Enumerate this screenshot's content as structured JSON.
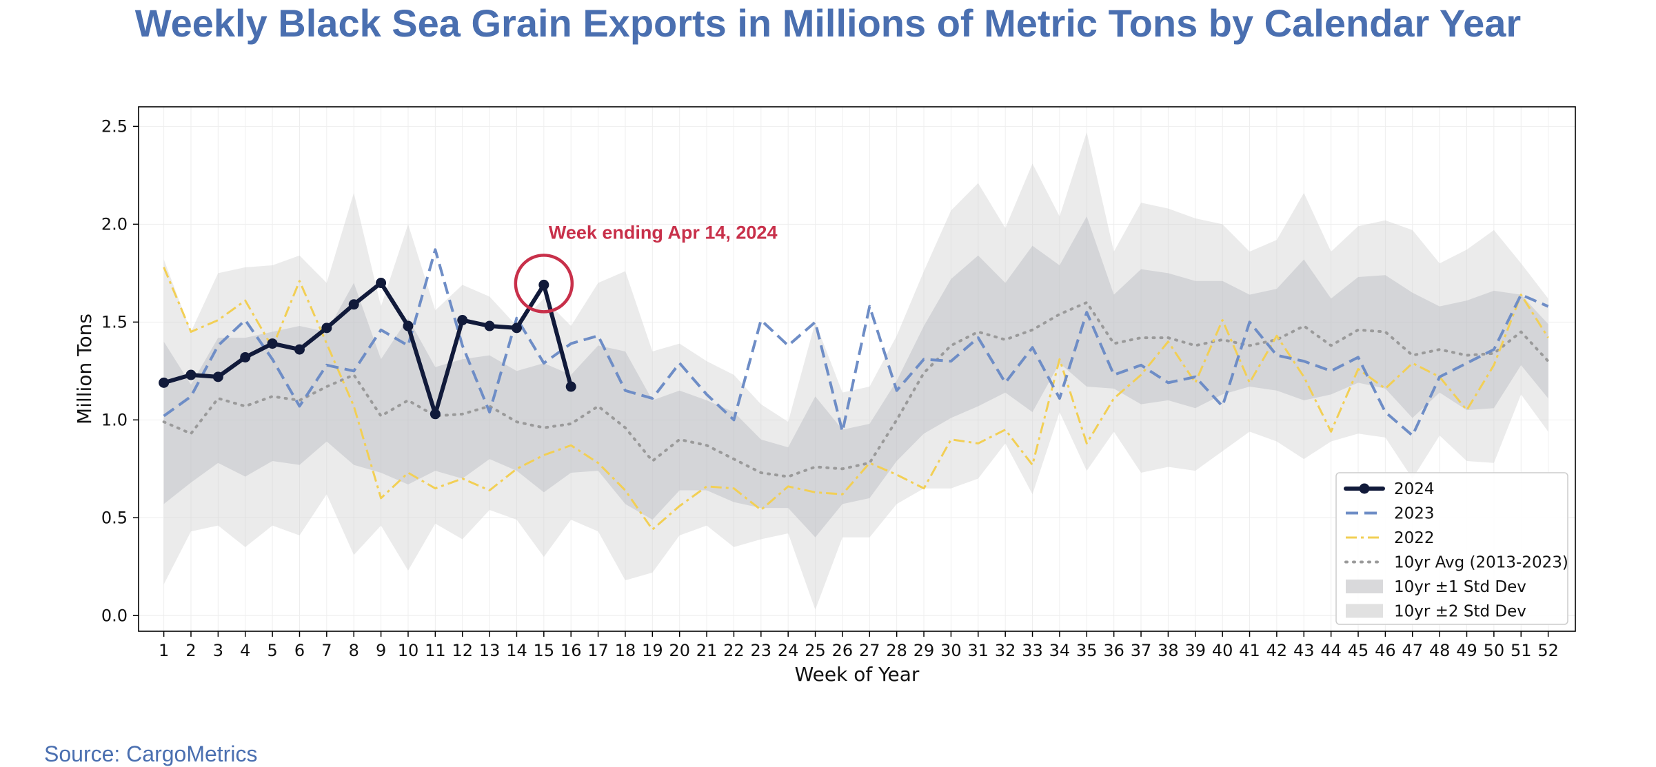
{
  "title": "Weekly Black Sea Grain Exports in Millions of Metric Tons by Calendar Year",
  "source": "Source: CargoMetrics",
  "colors": {
    "title": "#4A6FB0",
    "s2024": "#111A3A",
    "s2023": "#6E8DC6",
    "s2022": "#F2CF55",
    "avg": "#9A9A9A",
    "band1": "#D5D6DA",
    "band2": "#E8E8E8",
    "annotation": "#C8304A"
  },
  "chart_data": {
    "type": "line",
    "title": "Weekly Black Sea Grain Exports in Millions of Metric Tons by Calendar Year",
    "xlabel": "Week of Year",
    "ylabel": "Million Tons",
    "xlim": [
      0.07,
      53
    ],
    "ylim": [
      -0.08,
      2.6
    ],
    "yticks": [
      0.0,
      0.5,
      1.0,
      1.5,
      2.0,
      2.5
    ],
    "ytick_labels": [
      "0.0",
      "0.5",
      "1.0",
      "1.5",
      "2.0",
      "2.5"
    ],
    "x": [
      1,
      2,
      3,
      4,
      5,
      6,
      7,
      8,
      9,
      10,
      11,
      12,
      13,
      14,
      15,
      16,
      17,
      18,
      19,
      20,
      21,
      22,
      23,
      24,
      25,
      26,
      27,
      28,
      29,
      30,
      31,
      32,
      33,
      34,
      35,
      36,
      37,
      38,
      39,
      40,
      41,
      42,
      43,
      44,
      45,
      46,
      47,
      48,
      49,
      50,
      51,
      52
    ],
    "grid": true,
    "legend_position": "lower right",
    "series": [
      {
        "name": "2024",
        "style": "solid-marker",
        "x": [
          1,
          2,
          3,
          4,
          5,
          6,
          7,
          8,
          9,
          10,
          11,
          12,
          13,
          14,
          15,
          16
        ],
        "values": [
          1.19,
          1.23,
          1.22,
          1.32,
          1.39,
          1.36,
          1.47,
          1.59,
          1.7,
          1.48,
          1.03,
          1.51,
          1.48,
          1.47,
          1.69,
          1.17
        ]
      },
      {
        "name": "2023",
        "style": "dashed",
        "values": [
          1.02,
          1.12,
          1.38,
          1.51,
          1.31,
          1.07,
          1.28,
          1.25,
          1.46,
          1.38,
          1.87,
          1.38,
          1.04,
          1.52,
          1.29,
          1.39,
          1.43,
          1.15,
          1.11,
          1.29,
          1.13,
          1.0,
          1.51,
          1.38,
          1.5,
          0.94,
          1.58,
          1.15,
          1.31,
          1.3,
          1.42,
          1.19,
          1.37,
          1.11,
          1.55,
          1.23,
          1.28,
          1.19,
          1.22,
          1.07,
          1.5,
          1.33,
          1.3,
          1.25,
          1.32,
          1.04,
          0.92,
          1.22,
          1.29,
          1.36,
          1.64,
          1.58
        ]
      },
      {
        "name": "2022",
        "style": "dashdot",
        "values": [
          1.78,
          1.45,
          1.51,
          1.61,
          1.37,
          1.71,
          1.39,
          1.07,
          0.6,
          0.73,
          0.65,
          0.7,
          0.64,
          0.75,
          0.82,
          0.87,
          0.78,
          0.64,
          0.44,
          0.56,
          0.66,
          0.65,
          0.54,
          0.66,
          0.63,
          0.62,
          0.78,
          0.72,
          0.65,
          0.9,
          0.88,
          0.95,
          0.77,
          1.31,
          0.88,
          1.11,
          1.23,
          1.4,
          1.19,
          1.51,
          1.19,
          1.43,
          1.22,
          0.94,
          1.26,
          1.16,
          1.29,
          1.22,
          1.05,
          1.28,
          1.64,
          1.42
        ]
      },
      {
        "name": "10yr Avg (2013-2023)",
        "style": "dotted",
        "values": [
          0.99,
          0.93,
          1.11,
          1.07,
          1.12,
          1.1,
          1.17,
          1.23,
          1.02,
          1.1,
          1.02,
          1.03,
          1.07,
          0.99,
          0.96,
          0.98,
          1.07,
          0.96,
          0.79,
          0.9,
          0.87,
          0.8,
          0.73,
          0.71,
          0.76,
          0.75,
          0.78,
          1.0,
          1.24,
          1.38,
          1.45,
          1.41,
          1.46,
          1.54,
          1.6,
          1.39,
          1.42,
          1.42,
          1.38,
          1.41,
          1.38,
          1.41,
          1.48,
          1.38,
          1.46,
          1.45,
          1.33,
          1.36,
          1.33,
          1.34,
          1.45,
          1.3
        ]
      }
    ],
    "bands": [
      {
        "name": "10yr ±1 Std Dev",
        "upper": [
          1.4,
          1.18,
          1.42,
          1.42,
          1.45,
          1.48,
          1.45,
          1.7,
          1.31,
          1.52,
          1.27,
          1.31,
          1.33,
          1.25,
          1.29,
          1.23,
          1.38,
          1.35,
          1.1,
          1.15,
          1.1,
          1.04,
          0.9,
          0.86,
          1.12,
          0.95,
          0.98,
          1.2,
          1.48,
          1.72,
          1.84,
          1.7,
          1.89,
          1.79,
          2.04,
          1.64,
          1.77,
          1.75,
          1.71,
          1.71,
          1.64,
          1.67,
          1.82,
          1.62,
          1.73,
          1.74,
          1.65,
          1.58,
          1.61,
          1.66,
          1.64,
          1.49
        ],
        "lower": [
          0.57,
          0.68,
          0.78,
          0.71,
          0.79,
          0.77,
          0.89,
          0.77,
          0.73,
          0.67,
          0.74,
          0.7,
          0.8,
          0.74,
          0.63,
          0.73,
          0.74,
          0.57,
          0.49,
          0.64,
          0.64,
          0.58,
          0.55,
          0.55,
          0.4,
          0.57,
          0.6,
          0.79,
          0.93,
          1.01,
          1.07,
          1.14,
          1.04,
          1.29,
          1.17,
          1.16,
          1.08,
          1.1,
          1.06,
          1.13,
          1.17,
          1.15,
          1.1,
          1.13,
          1.19,
          1.16,
          1.01,
          1.14,
          1.05,
          1.06,
          1.28,
          1.11
        ]
      },
      {
        "name": "10yr ±2 Std Dev",
        "upper": [
          1.82,
          1.45,
          1.75,
          1.78,
          1.79,
          1.84,
          1.7,
          2.16,
          1.58,
          2.0,
          1.56,
          1.69,
          1.63,
          1.48,
          1.62,
          1.48,
          1.7,
          1.76,
          1.35,
          1.39,
          1.3,
          1.23,
          1.08,
          0.99,
          1.5,
          1.14,
          1.17,
          1.43,
          1.76,
          2.07,
          2.21,
          1.98,
          2.31,
          2.04,
          2.47,
          1.86,
          2.11,
          2.08,
          2.03,
          2.0,
          1.86,
          1.92,
          2.16,
          1.86,
          1.99,
          2.02,
          1.97,
          1.8,
          1.87,
          1.97,
          1.8,
          1.62
        ],
        "lower": [
          0.16,
          0.43,
          0.46,
          0.35,
          0.46,
          0.41,
          0.62,
          0.31,
          0.46,
          0.23,
          0.47,
          0.39,
          0.54,
          0.49,
          0.3,
          0.49,
          0.43,
          0.18,
          0.22,
          0.41,
          0.46,
          0.35,
          0.39,
          0.42,
          0.03,
          0.4,
          0.4,
          0.57,
          0.65,
          0.65,
          0.7,
          0.88,
          0.62,
          1.04,
          0.74,
          0.94,
          0.73,
          0.76,
          0.74,
          0.84,
          0.94,
          0.89,
          0.8,
          0.89,
          0.93,
          0.91,
          0.7,
          0.92,
          0.79,
          0.78,
          1.13,
          0.94
        ]
      }
    ],
    "annotation": {
      "text": "Week ending Apr 14, 2024",
      "x": 15,
      "y": 1.69
    }
  }
}
